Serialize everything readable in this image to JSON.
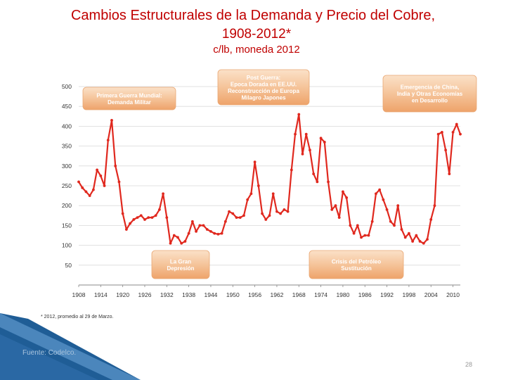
{
  "header": {
    "title": "Cambios Estructurales de la Demanda y Precio del Cobre,",
    "subtitle": "1908-2012*",
    "units": "c/lb, moneda 2012"
  },
  "chart_data": {
    "type": "line",
    "title": "Cambios Estructurales de la Demanda y Precio del Cobre, 1908-2012*",
    "ylabel": "",
    "xlabel": "",
    "ylim": [
      0,
      500
    ],
    "xlim": [
      1908,
      2012
    ],
    "grid": true,
    "y_ticks": [
      500,
      450,
      400,
      350,
      300,
      250,
      200,
      150,
      100,
      50,
      ""
    ],
    "x_ticks": [
      "1908",
      "1914",
      "1920",
      "1926",
      "1932",
      "1938",
      "1944",
      "1950",
      "1956",
      "1962",
      "1968",
      "1974",
      "1980",
      "1986",
      "1992",
      "1998",
      "2004",
      "2010"
    ],
    "line_color": "#e0281e",
    "series": [
      {
        "name": "",
        "x": [
          1908,
          1909,
          1910,
          1911,
          1912,
          1913,
          1914,
          1915,
          1916,
          1917,
          1918,
          1919,
          1920,
          1921,
          1922,
          1923,
          1924,
          1925,
          1926,
          1927,
          1928,
          1929,
          1930,
          1931,
          1932,
          1933,
          1934,
          1935,
          1936,
          1937,
          1938,
          1939,
          1940,
          1941,
          1942,
          1943,
          1944,
          1945,
          1946,
          1947,
          1948,
          1949,
          1950,
          1951,
          1952,
          1953,
          1954,
          1955,
          1956,
          1957,
          1958,
          1959,
          1960,
          1961,
          1962,
          1963,
          1964,
          1965,
          1966,
          1967,
          1968,
          1969,
          1970,
          1971,
          1972,
          1973,
          1974,
          1975,
          1976,
          1977,
          1978,
          1979,
          1980,
          1981,
          1982,
          1983,
          1984,
          1985,
          1986,
          1987,
          1988,
          1989,
          1990,
          1991,
          1992,
          1993,
          1994,
          1995,
          1996,
          1997,
          1998,
          1999,
          2000,
          2001,
          2002,
          2003,
          2004,
          2005,
          2006,
          2007,
          2008,
          2009,
          2010,
          2011,
          2012
        ],
        "values": [
          260,
          245,
          235,
          225,
          240,
          290,
          275,
          250,
          365,
          415,
          300,
          260,
          180,
          140,
          155,
          165,
          170,
          175,
          165,
          170,
          170,
          175,
          190,
          230,
          170,
          105,
          125,
          120,
          105,
          110,
          130,
          160,
          135,
          150,
          150,
          140,
          135,
          130,
          128,
          130,
          160,
          185,
          180,
          170,
          170,
          175,
          215,
          230,
          310,
          250,
          180,
          165,
          175,
          230,
          185,
          180,
          190,
          185,
          290,
          380,
          430,
          330,
          380,
          340,
          280,
          260,
          370,
          360,
          260,
          190,
          200,
          170,
          235,
          220,
          150,
          130,
          150,
          120,
          125,
          125,
          160,
          230,
          240,
          215,
          190,
          160,
          150,
          200,
          140,
          120,
          130,
          110,
          125,
          110,
          105,
          115,
          165,
          200,
          380,
          385,
          340,
          280,
          385,
          405,
          380
        ]
      }
    ],
    "annotations": [
      {
        "text": "Primera Guerra Mundial: Demanda Militar"
      },
      {
        "text": "Post Guerra: Epoca Dorada en EE.UU. Reconstrucción de Europa Milagro Japones"
      },
      {
        "text": "Emergencia de China, India y Otras Economías en Desarrollo"
      },
      {
        "text": "La Gran Depresión"
      },
      {
        "text": "Crisis del Petróleo Sustitución"
      }
    ]
  },
  "footnote": "* 2012, promedio al 29 de Marzo.",
  "source": "Fuente: Codelco.",
  "page_number": "28",
  "colors": {
    "title": "#c00000",
    "line": "#e0281e",
    "callout": "#f5c9a0",
    "callout_text": "#ffffff",
    "stripe_dark": "#1f5d96",
    "stripe_light": "#6fa8dc"
  }
}
